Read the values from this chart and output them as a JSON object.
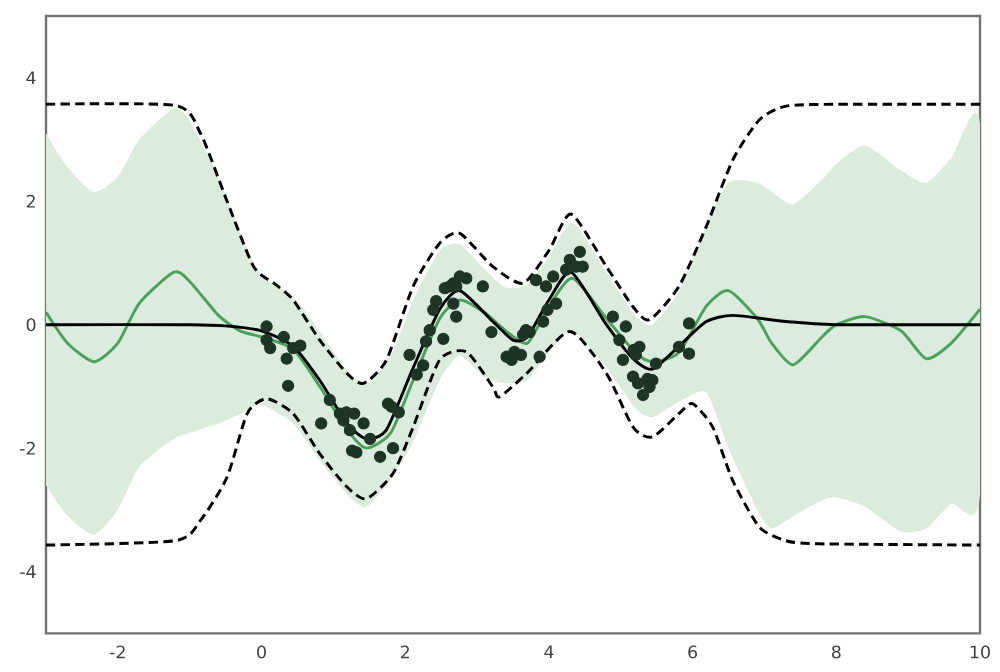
{
  "chart_data": {
    "type": "line",
    "xlim": [
      -3,
      10
    ],
    "ylim": [
      -5,
      5
    ],
    "xticks": [
      -2,
      0,
      2,
      4,
      6,
      8,
      10
    ],
    "yticks": [
      -4,
      -2,
      0,
      2,
      4
    ],
    "grid": false,
    "series": [
      {
        "color": "#4c9f5c",
        "line_style": "solid",
        "x": [
          -3,
          -2.7,
          -2.33,
          -2,
          -1.7,
          -1.22,
          -1,
          -0.6,
          -0.3,
          0,
          0.44,
          0.81,
          1.19,
          1.46,
          1.8,
          2.11,
          2.48,
          2.76,
          3.1,
          3.4,
          3.7,
          4.0,
          4.33,
          4.8,
          5.2,
          5.44,
          5.81,
          6.19,
          6.5,
          6.9,
          7.1,
          7.4,
          7.8,
          8.0,
          8.4,
          8.9,
          9.25,
          9.6,
          10
        ],
        "values": [
          0.2,
          -0.3,
          -0.6,
          -0.3,
          0.35,
          0.85,
          0.7,
          0.15,
          -0.1,
          -0.2,
          -0.4,
          -1.0,
          -1.7,
          -2.0,
          -1.75,
          -0.9,
          0.1,
          0.4,
          0.2,
          -0.1,
          -0.3,
          0.3,
          0.75,
          0.1,
          -0.45,
          -0.6,
          -0.45,
          0.3,
          0.55,
          0.1,
          -0.3,
          -0.65,
          -0.2,
          0.0,
          0.13,
          -0.1,
          -0.55,
          -0.3,
          0.25
        ],
        "upper": [
          3.1,
          2.55,
          2.15,
          2.4,
          3.0,
          3.5,
          3.3,
          2.4,
          1.5,
          0.8,
          0.45,
          -0.1,
          -0.75,
          -0.95,
          -0.5,
          0.4,
          1.2,
          1.3,
          0.9,
          0.6,
          0.65,
          1.1,
          1.65,
          0.85,
          0.15,
          0.0,
          0.55,
          1.6,
          2.3,
          2.3,
          2.15,
          1.95,
          2.35,
          2.6,
          2.9,
          2.5,
          2.3,
          2.7,
          3.25
        ],
        "lower": [
          -2.6,
          -3.1,
          -3.4,
          -3.0,
          -2.3,
          -1.85,
          -1.75,
          -1.6,
          -1.45,
          -1.3,
          -1.6,
          -2.2,
          -2.75,
          -2.95,
          -2.5,
          -1.9,
          -0.9,
          -0.5,
          -0.85,
          -0.95,
          -0.9,
          -0.45,
          -0.1,
          -0.7,
          -1.35,
          -1.5,
          -1.25,
          -1.1,
          -2.0,
          -3.0,
          -3.3,
          -3.1,
          -2.85,
          -2.8,
          -2.95,
          -3.35,
          -3.3,
          -2.9,
          -2.75
        ]
      },
      {
        "color": "#000000",
        "line_style": "dashed",
        "x": [
          -3,
          -1.2,
          -0.85,
          -0.48,
          -0.11,
          0.2,
          0.44,
          0.81,
          1.19,
          1.42,
          1.74,
          2.11,
          2.48,
          2.76,
          3.22,
          3.64,
          4.0,
          4.31,
          4.8,
          5.17,
          5.4,
          5.81,
          6.19,
          6.56,
          6.93,
          7.3,
          8,
          10
        ],
        "values": [
          3.57,
          3.55,
          3.1,
          2.0,
          0.94,
          0.65,
          0.4,
          -0.25,
          -0.79,
          -0.95,
          -0.57,
          0.62,
          1.32,
          1.48,
          0.94,
          0.67,
          1.2,
          1.79,
          0.94,
          0.29,
          0.08,
          0.62,
          1.59,
          2.67,
          3.32,
          3.54,
          3.57,
          3.57
        ]
      },
      {
        "color": "#000000",
        "line_style": "dashed",
        "x": [
          -3,
          -1.2,
          -0.85,
          -0.48,
          -0.2,
          0.07,
          0.44,
          0.81,
          1.19,
          1.46,
          1.83,
          2.11,
          2.48,
          2.85,
          3.22,
          3.31,
          3.69,
          4.29,
          4.8,
          5.17,
          5.44,
          5.81,
          6.0,
          6.28,
          6.56,
          6.93,
          7.3,
          7.76,
          10
        ],
        "values": [
          -3.57,
          -3.5,
          -3.17,
          -2.47,
          -1.44,
          -1.2,
          -1.44,
          -2.09,
          -2.63,
          -2.82,
          -2.41,
          -1.66,
          -0.57,
          -0.44,
          -1.01,
          -1.17,
          -0.79,
          -0.11,
          -0.79,
          -1.66,
          -1.82,
          -1.44,
          -1.28,
          -1.66,
          -2.53,
          -3.28,
          -3.5,
          -3.55,
          -3.57
        ]
      },
      {
        "color": "#000000",
        "line_style": "solid",
        "x": [
          -3,
          -1,
          -0.5,
          0,
          0.44,
          0.81,
          1.19,
          1.46,
          1.74,
          2.11,
          2.48,
          2.76,
          3.22,
          3.5,
          3.7,
          4.0,
          4.31,
          4.8,
          5.17,
          5.44,
          5.81,
          6.19,
          6.56,
          7.3,
          8,
          10
        ],
        "values": [
          0,
          0,
          -0.02,
          -0.1,
          -0.35,
          -0.9,
          -1.6,
          -1.85,
          -1.7,
          -0.7,
          0.25,
          0.55,
          0.05,
          -0.25,
          -0.2,
          0.4,
          0.85,
          0.0,
          -0.55,
          -0.72,
          -0.35,
          0.05,
          0.15,
          0.05,
          0,
          0
        ]
      },
      {
        "type": "scatter",
        "color": "#1e3526",
        "marker": "circle",
        "x": [
          0.07,
          0.07,
          0.12,
          0.31,
          0.35,
          0.44,
          0.54,
          0.37,
          0.83,
          0.95,
          1.09,
          1.14,
          1.18,
          1.23,
          1.29,
          1.42,
          1.26,
          1.32,
          1.51,
          1.65,
          1.76,
          1.81,
          1.83,
          1.91,
          2.06,
          2.16,
          2.25,
          2.29,
          2.34,
          2.39,
          2.43,
          2.53,
          2.55,
          2.62,
          2.67,
          2.71,
          2.76,
          2.67,
          2.71,
          2.85,
          3.08,
          3.2,
          3.41,
          3.48,
          3.52,
          3.61,
          3.64,
          3.68,
          3.73,
          3.82,
          3.87,
          3.92,
          3.96,
          3.98,
          4.06,
          4.1,
          4.24,
          4.29,
          4.38,
          4.43,
          4.47,
          4.89,
          4.98,
          5.03,
          5.07,
          5.18,
          5.21,
          5.26,
          5.17,
          5.24,
          5.31,
          5.37,
          5.4,
          5.44,
          5.49,
          5.81,
          5.95,
          5.95
        ],
        "values": [
          -0.03,
          -0.25,
          -0.38,
          -0.2,
          -0.55,
          -0.38,
          -0.34,
          -0.99,
          -1.6,
          -1.22,
          -1.44,
          -1.55,
          -1.42,
          -1.71,
          -1.44,
          -1.6,
          -2.04,
          -2.07,
          -1.85,
          -2.14,
          -1.28,
          -1.33,
          -2.0,
          -1.42,
          -0.49,
          -0.81,
          -0.66,
          -0.27,
          -0.09,
          0.24,
          0.38,
          -0.23,
          0.59,
          0.62,
          0.67,
          0.62,
          0.78,
          0.34,
          0.13,
          0.75,
          0.62,
          -0.12,
          -0.52,
          -0.57,
          -0.44,
          -0.49,
          -0.16,
          -0.09,
          -0.12,
          0.72,
          -0.52,
          0.05,
          0.62,
          0.24,
          0.78,
          0.34,
          0.89,
          1.05,
          0.94,
          1.18,
          0.94,
          0.13,
          -0.25,
          -0.57,
          -0.03,
          -0.41,
          -0.49,
          -0.36,
          -0.84,
          -0.95,
          -1.14,
          -0.88,
          -1.01,
          -0.9,
          -0.63,
          -0.36,
          0.02,
          -0.47
        ]
      }
    ]
  }
}
